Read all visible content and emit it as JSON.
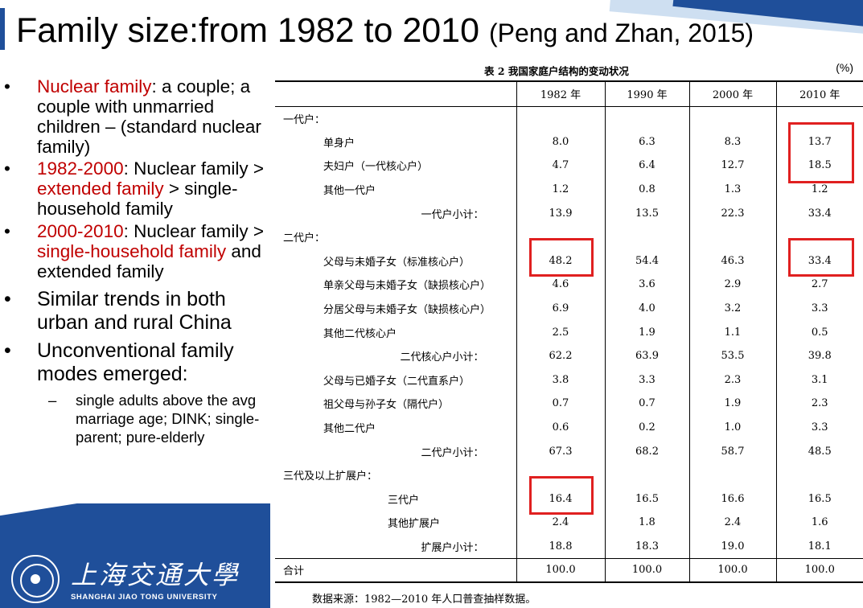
{
  "title": {
    "main": "Family size:from 1982 to 2010",
    "citation": "(Peng and Zhan, 2015)"
  },
  "bullets": [
    {
      "runs": [
        {
          "text": "Nuclear family",
          "red": true
        },
        {
          "text": ": a couple; a couple with unmarried children – (standard nuclear family)",
          "red": false
        }
      ]
    },
    {
      "runs": [
        {
          "text": "1982-2000",
          "red": true
        },
        {
          "text": ": Nuclear family > ",
          "red": false
        },
        {
          "text": "extended family",
          "red": true
        },
        {
          "text": " > single-household family",
          "red": false
        }
      ]
    },
    {
      "runs": [
        {
          "text": "2000-2010",
          "red": true
        },
        {
          "text": ": Nuclear family > ",
          "red": false
        },
        {
          "text": "single-household family",
          "red": true
        },
        {
          "text": " and extended family",
          "red": false
        }
      ]
    },
    {
      "runs": [
        {
          "text": "Similar trends in both urban and rural China",
          "red": false
        }
      ]
    },
    {
      "runs": [
        {
          "text": "Unconventional family modes emerged:",
          "red": false
        }
      ]
    }
  ],
  "sub_bullet": "single adults above the avg marriage age; DINK; single-parent; pure-elderly",
  "bullet_marker": "•",
  "sub_bullet_marker": "–",
  "table": {
    "caption": "表 2  我国家庭户结构的变动状况",
    "unit": "(%)",
    "headers": [
      "",
      "1982 年",
      "1990 年",
      "2000 年",
      "2010 年"
    ],
    "rows": [
      {
        "label": "一代户：",
        "level": 0,
        "values": [
          "",
          "",
          "",
          ""
        ]
      },
      {
        "label": "单身户",
        "level": 1,
        "values": [
          "8.0",
          "6.3",
          "8.3",
          "13.7"
        ]
      },
      {
        "label": "夫妇户（一代核心户）",
        "level": 1,
        "values": [
          "4.7",
          "6.4",
          "12.7",
          "18.5"
        ]
      },
      {
        "label": "其他一代户",
        "level": 1,
        "values": [
          "1.2",
          "0.8",
          "1.3",
          "1.2"
        ]
      },
      {
        "label": "一代户小计：",
        "level": 3,
        "values": [
          "13.9",
          "13.5",
          "22.3",
          "33.4"
        ]
      },
      {
        "label": "二代户：",
        "level": 0,
        "values": [
          "",
          "",
          "",
          ""
        ]
      },
      {
        "label": "父母与未婚子女（标准核心户）",
        "level": 1,
        "values": [
          "48.2",
          "54.4",
          "46.3",
          "33.4"
        ]
      },
      {
        "label": "单亲父母与未婚子女（缺损核心户）",
        "level": 1,
        "values": [
          "4.6",
          "3.6",
          "2.9",
          "2.7"
        ]
      },
      {
        "label": "分居父母与未婚子女（缺损核心户）",
        "level": 1,
        "values": [
          "6.9",
          "4.0",
          "3.2",
          "3.3"
        ]
      },
      {
        "label": "其他二代核心户",
        "level": 1,
        "values": [
          "2.5",
          "1.9",
          "1.1",
          "0.5"
        ]
      },
      {
        "label": "二代核心户小计：",
        "level": 3,
        "values": [
          "62.2",
          "63.9",
          "53.5",
          "39.8"
        ]
      },
      {
        "label": "父母与已婚子女（二代直系户）",
        "level": 1,
        "values": [
          "3.8",
          "3.3",
          "2.3",
          "3.1"
        ]
      },
      {
        "label": "祖父母与孙子女（隔代户）",
        "level": 1,
        "values": [
          "0.7",
          "0.7",
          "1.9",
          "2.3"
        ]
      },
      {
        "label": "其他二代户",
        "level": 1,
        "values": [
          "0.6",
          "0.2",
          "1.0",
          "3.3"
        ]
      },
      {
        "label": "二代户小计：",
        "level": 3,
        "values": [
          "67.3",
          "68.2",
          "58.7",
          "48.5"
        ]
      },
      {
        "label": "三代及以上扩展户：",
        "level": 0,
        "values": [
          "",
          "",
          "",
          ""
        ]
      },
      {
        "label": "三代户",
        "level": 2,
        "values": [
          "16.4",
          "16.5",
          "16.6",
          "16.5"
        ]
      },
      {
        "label": "其他扩展户",
        "level": 2,
        "values": [
          "2.4",
          "1.8",
          "2.4",
          "1.6"
        ]
      },
      {
        "label": "扩展户小计：",
        "level": 3,
        "values": [
          "18.8",
          "18.3",
          "19.0",
          "18.1"
        ]
      },
      {
        "label": "合计",
        "level": 0,
        "values": [
          "100.0",
          "100.0",
          "100.0",
          "100.0"
        ]
      }
    ],
    "source": "数据来源：1982—2010 年人口普查抽样数据。"
  },
  "logo": {
    "chinese": "上海交通大學",
    "english": "SHANGHAI JIAO TONG UNIVERSITY"
  },
  "colors": {
    "accent_red": "#c00000",
    "highlight_box": "#e02020",
    "brand_blue": "#1f4f9a"
  }
}
